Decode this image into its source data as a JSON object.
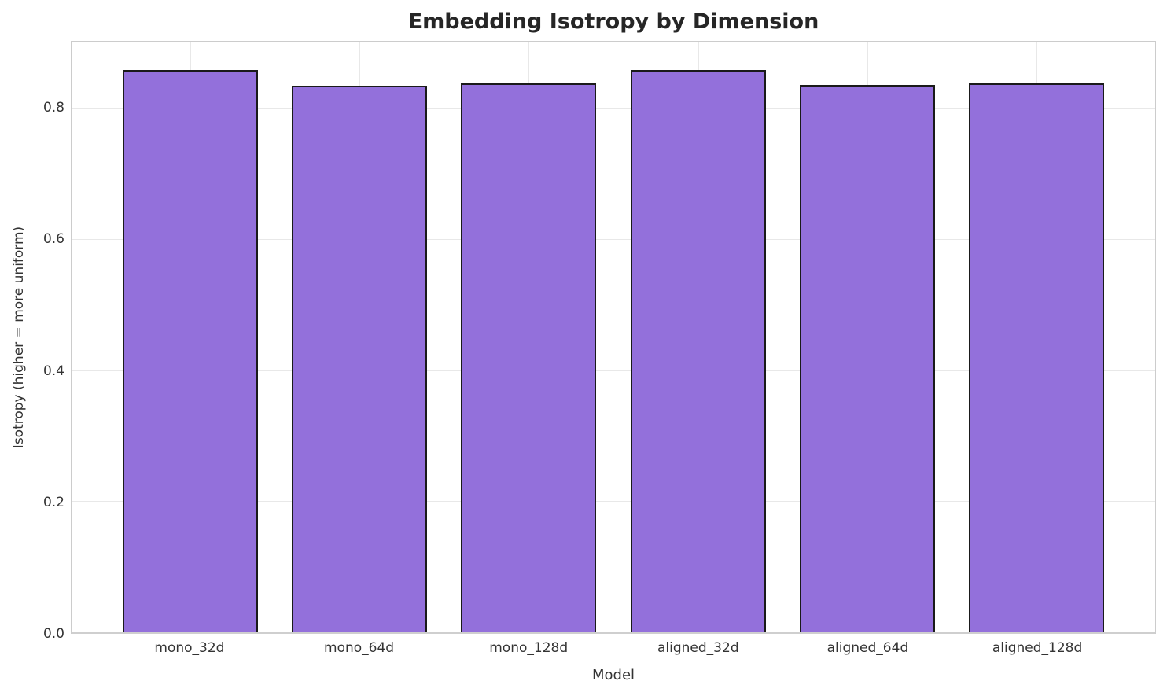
{
  "chart_data": {
    "type": "bar",
    "title": "Embedding Isotropy by Dimension",
    "xlabel": "Model",
    "ylabel": "Isotropy (higher = more uniform)",
    "categories": [
      "mono_32d",
      "mono_64d",
      "mono_128d",
      "aligned_32d",
      "aligned_64d",
      "aligned_128d"
    ],
    "values": [
      0.859,
      0.835,
      0.838,
      0.859,
      0.836,
      0.838
    ],
    "yticks": [
      0.0,
      0.2,
      0.4,
      0.6,
      0.8
    ],
    "ytick_labels": [
      "0.0",
      "0.2",
      "0.4",
      "0.6",
      "0.8"
    ],
    "ylim": [
      0,
      0.902
    ],
    "xlim": [
      -0.7,
      5.7
    ],
    "bar_width": 0.8,
    "grid": true,
    "legend": "none",
    "colors": {
      "bar_fill": "#9370DB",
      "bar_edge": "#1a1a1a",
      "grid": "#e8e8e8",
      "spine": "#cccccc",
      "title_text": "#262626",
      "tick_text": "#333333",
      "background": "#ffffff"
    }
  }
}
